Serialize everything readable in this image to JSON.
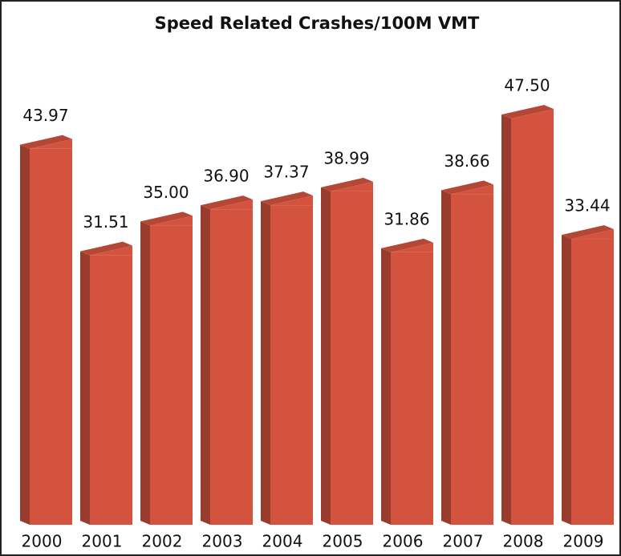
{
  "chart_data": {
    "type": "bar3d",
    "title": "Speed Related Crashes/100M VMT",
    "categories": [
      "2000",
      "2001",
      "2002",
      "2003",
      "2004",
      "2005",
      "2006",
      "2007",
      "2008",
      "2009"
    ],
    "values": [
      43.97,
      31.51,
      35.0,
      36.9,
      37.37,
      38.99,
      31.86,
      38.66,
      47.5,
      33.44
    ],
    "value_labels": [
      "43.97",
      "31.51",
      "35.00",
      "36.90",
      "37.37",
      "38.99",
      "31.86",
      "38.66",
      "47.50",
      "33.44"
    ],
    "color": "#d4533f"
  }
}
